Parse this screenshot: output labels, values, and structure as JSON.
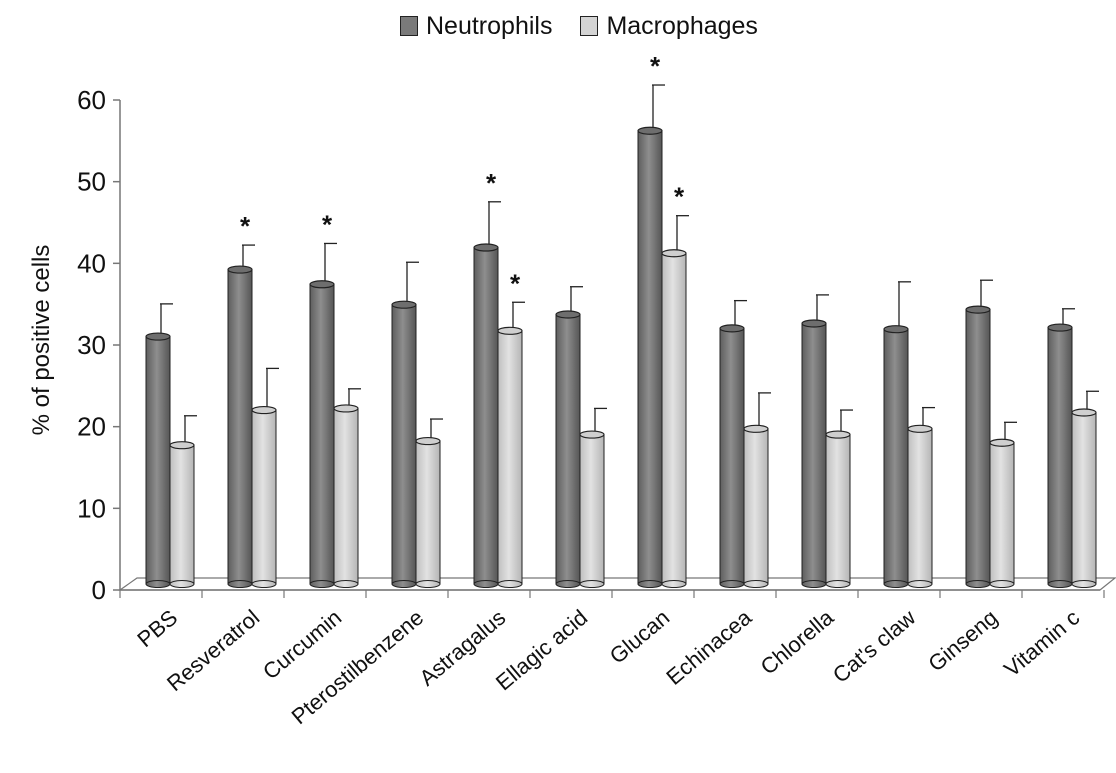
{
  "chart_data": {
    "type": "bar",
    "title": "",
    "xlabel": "",
    "ylabel": "% of positive cells",
    "ylim": [
      0,
      60
    ],
    "yticks": [
      0,
      10,
      20,
      30,
      40,
      50,
      60
    ],
    "grid": false,
    "legend_position": "top-center",
    "categories": [
      "PBS",
      "Resveratrol",
      "Curcumin",
      "Pterostilbenzene",
      "Astragalus",
      "Ellagic acid",
      "Glucan",
      "Echinacea",
      "Chlorella",
      "Cat's claw",
      "Ginseng",
      "Vitamin c"
    ],
    "series": [
      {
        "name": "Neutrophils",
        "color": "#7a7a7a",
        "values": [
          30.3,
          38.5,
          36.7,
          34.2,
          41.2,
          33.0,
          55.5,
          31.3,
          31.9,
          31.2,
          33.6,
          31.4
        ],
        "errors": [
          4.0,
          3.0,
          5.0,
          5.2,
          5.6,
          3.4,
          5.6,
          3.4,
          3.5,
          5.8,
          3.6,
          2.3
        ],
        "significant": [
          false,
          true,
          true,
          false,
          true,
          false,
          true,
          false,
          false,
          false,
          false,
          false
        ]
      },
      {
        "name": "Macrophages",
        "color": "#d4d4d4",
        "values": [
          17.0,
          21.3,
          21.5,
          17.5,
          31.0,
          18.3,
          40.5,
          19.0,
          18.3,
          19.0,
          17.3,
          21.0
        ],
        "errors": [
          3.6,
          5.1,
          2.4,
          2.7,
          3.5,
          3.2,
          4.6,
          4.4,
          3.0,
          2.6,
          2.5,
          2.6
        ],
        "significant": [
          false,
          false,
          false,
          false,
          true,
          false,
          true,
          false,
          false,
          false,
          false,
          false
        ]
      }
    ],
    "significance_marker": "*"
  }
}
